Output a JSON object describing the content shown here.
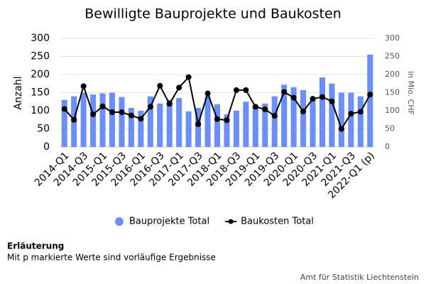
{
  "chart_data": {
    "type": "bar_line",
    "title": "Bewilligte Bauprojekte und Baukosten",
    "y_label": "Anzahl",
    "y2_label": "in Mio. CHF",
    "categories": [
      "2014-Q1",
      null,
      "2014-Q3",
      null,
      "2015-Q1",
      null,
      "2015-Q3",
      null,
      "2016-Q1",
      null,
      "2016-Q3",
      null,
      "2017-Q1",
      null,
      "2017-Q3",
      null,
      "2018-Q1",
      null,
      "2018-Q3",
      null,
      "2019-Q1",
      null,
      "2019-Q3",
      null,
      "2020-Q1",
      null,
      "2020-Q3",
      null,
      "2021-Q1",
      null,
      "2021-Q3",
      null,
      "2022-Q1 (p)"
    ],
    "series": [
      {
        "name": "Bauprojekte Total",
        "type": "bar",
        "color": "#6b8ff7",
        "values": [
          130,
          140,
          150,
          145,
          148,
          150,
          138,
          108,
          100,
          140,
          120,
          130,
          135,
          98,
          108,
          140,
          118,
          90,
          100,
          125,
          115,
          120,
          140,
          172,
          165,
          157,
          135,
          192,
          175,
          150,
          150,
          140,
          255
        ]
      },
      {
        "name": "Baukosten Total",
        "type": "line",
        "axis": "y2",
        "color": "#000000",
        "values": [
          105,
          75,
          168,
          90,
          112,
          96,
          96,
          87,
          78,
          111,
          169,
          119,
          164,
          193,
          63,
          148,
          77,
          74,
          157,
          157,
          111,
          104,
          86,
          152,
          136,
          98,
          133,
          138,
          126,
          50,
          92,
          97,
          145
        ]
      }
    ],
    "ylim": [
      0,
      300
    ],
    "yticks": [
      0,
      50,
      100,
      150,
      200,
      250,
      300
    ],
    "y2lim": [
      0,
      300
    ],
    "y2ticks": [
      0,
      50,
      100,
      150,
      200,
      250,
      300
    ],
    "grid": true,
    "legend": "bottom"
  },
  "footnote": {
    "title": "Erläuterung",
    "text": "Mit p markierte Werte sind vorläufige Ergebnisse"
  },
  "source": "Amt für Statistik Liechtenstein"
}
